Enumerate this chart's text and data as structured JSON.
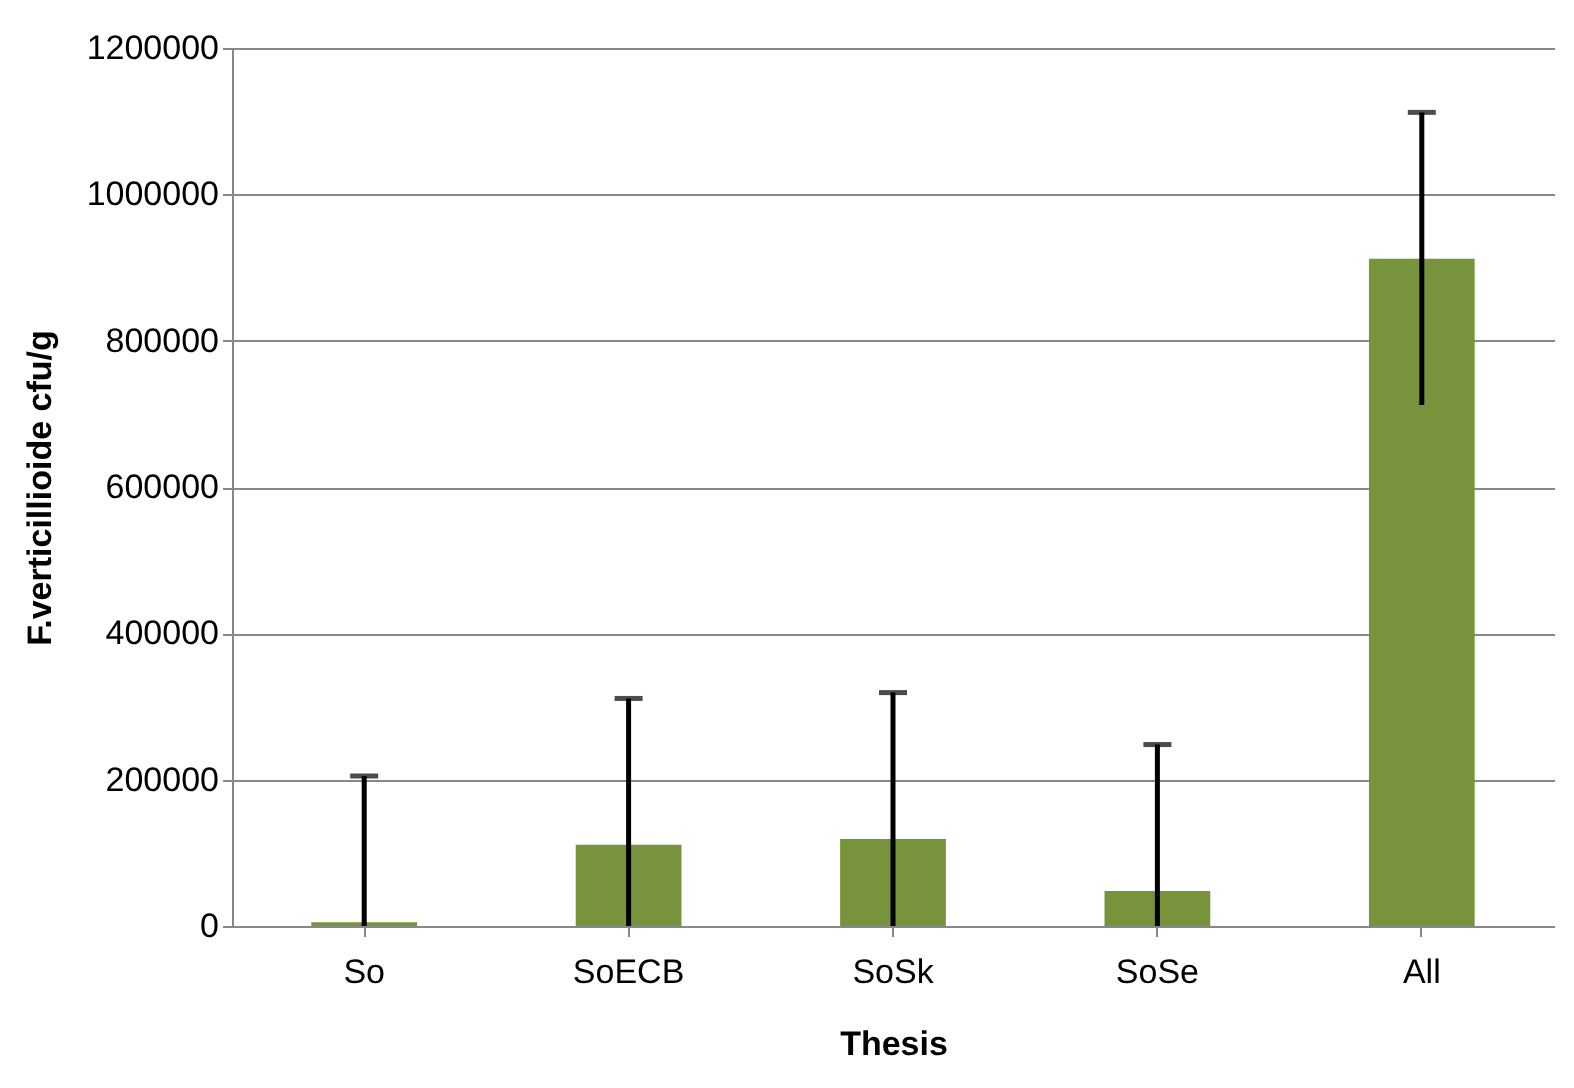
{
  "chart_data": {
    "type": "bar",
    "xlabel": "Thesis",
    "ylabel": "F.verticillioide cfu/g",
    "categories": [
      "So",
      "SoECB",
      "SoSk",
      "SoSe",
      "All"
    ],
    "values": [
      5000,
      111000,
      119000,
      48000,
      912000
    ],
    "errors": [
      200000,
      200000,
      200000,
      200000,
      200000
    ],
    "color": "#77933c",
    "ylim": [
      0,
      1200000
    ],
    "yticks": [
      0,
      200000,
      400000,
      600000,
      800000,
      1000000,
      1200000
    ],
    "grid": "y"
  }
}
